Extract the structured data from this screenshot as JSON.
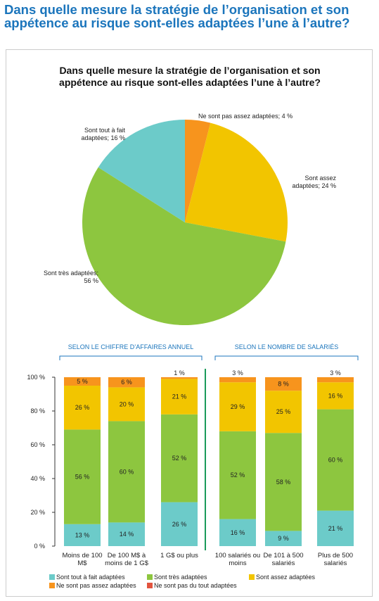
{
  "header": {
    "title": "Dans quelle mesure la stratégie de l’organisation et son appétence au risque sont-elles adaptées l’une à l’autre?"
  },
  "chart_data": [
    {
      "type": "pie",
      "title": "Dans quelle mesure la stratégie de l’organisation et son appétence au risque sont-elles adaptées l’une à l’autre?",
      "values": [
        4,
        24,
        56,
        16
      ],
      "value_labels": [
        "Ne sont pas assez adaptées; 4 %",
        "Sont assez adaptées; 24 %",
        "Sont très adaptées; 56 %",
        "Sont tout à fait adaptées; 16 %"
      ],
      "colors": [
        "#f7941d",
        "#f2c500",
        "#8dc63f",
        "#6ccbc9"
      ]
    },
    {
      "type": "stacked-bar",
      "groups": [
        {
          "name": "SELON LE CHIFFRE D’AFFAIRES ANNUEL",
          "categories": [
            "Moins de 100 M$",
            "De 100 M$ à moins de 1 G$",
            "1 G$ ou plus"
          ]
        },
        {
          "name": "SELON LE NOMBRE DE SALARIÉS",
          "categories": [
            "100 salariés ou moins",
            "De 101 à 500 salariés",
            "Plus de 500 salariés"
          ]
        }
      ],
      "series": [
        {
          "name": "Sont tout à fait adaptées",
          "color": "#6ccbc9",
          "values": [
            13,
            14,
            26,
            16,
            9,
            21
          ],
          "value_labels": [
            "13 %",
            "14 %",
            "26 %",
            "16 %",
            "9 %",
            "21 %"
          ]
        },
        {
          "name": "Sont très adaptées",
          "color": "#8dc63f",
          "values": [
            56,
            60,
            52,
            52,
            58,
            60
          ],
          "value_labels": [
            "56 %",
            "60 %",
            "52 %",
            "52 %",
            "58 %",
            "60 %"
          ]
        },
        {
          "name": "Sont assez adaptées",
          "color": "#f2c500",
          "values": [
            26,
            20,
            21,
            29,
            25,
            16
          ],
          "value_labels": [
            "26 %",
            "20 %",
            "21 %",
            "29 %",
            "25 %",
            "16 %"
          ]
        },
        {
          "name": "Ne sont pas assez adaptées",
          "color": "#f7941d",
          "values": [
            5,
            6,
            1,
            3,
            8,
            3
          ],
          "value_labels": [
            "5 %",
            "6 %",
            "1 %",
            "3 %",
            "8 %",
            "3 %"
          ]
        },
        {
          "name": "Ne sont pas du tout adaptées",
          "color": "#e2543e",
          "values": [
            0,
            0,
            0,
            0,
            0,
            0
          ]
        }
      ],
      "ylim": [
        0,
        100
      ],
      "yticks": [
        {
          "value": 0,
          "label": "0 %"
        },
        {
          "value": 20,
          "label": "20 %"
        },
        {
          "value": 40,
          "label": "40 %"
        },
        {
          "value": 60,
          "label": "60 %"
        },
        {
          "value": 80,
          "label": "80 %"
        },
        {
          "value": 100,
          "label": "100 %"
        }
      ]
    }
  ]
}
